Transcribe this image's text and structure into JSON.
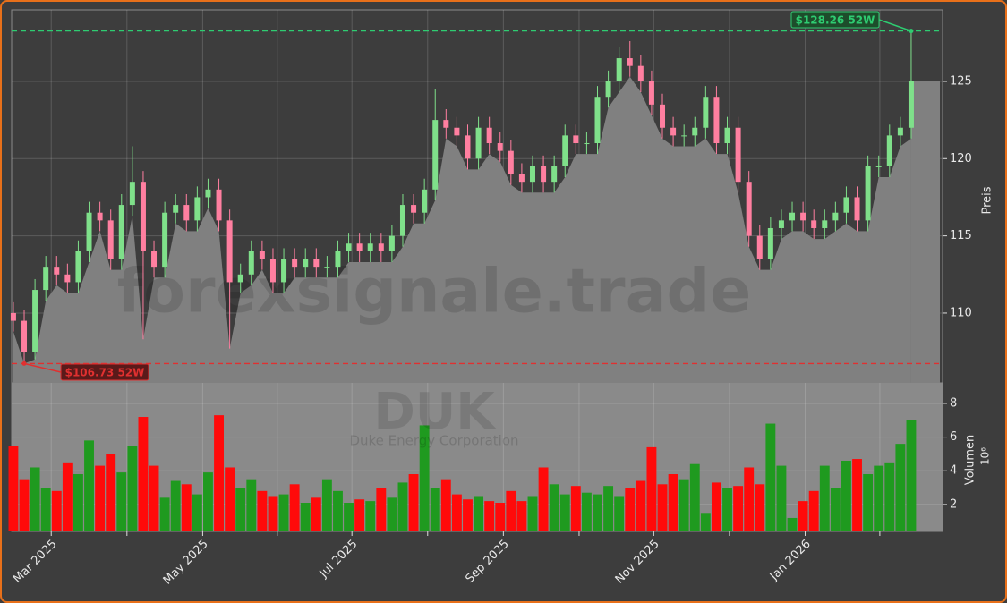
{
  "chart_data": {
    "type": "candlestick",
    "open": [
      110,
      109.5,
      107.5,
      111.5,
      113,
      112.5,
      112,
      114,
      116.5,
      116,
      113.5,
      117,
      118.5,
      114,
      113,
      116.5,
      117,
      116,
      117.5,
      118,
      116,
      112,
      112.5,
      114,
      113.5,
      112,
      113.5,
      113,
      113.5,
      113,
      113,
      114,
      114.5,
      114,
      114.5,
      114,
      115,
      117,
      116.5,
      118,
      122.5,
      122,
      121.5,
      120,
      122,
      121,
      120.5,
      119,
      118.5,
      119.5,
      118.5,
      119.5,
      121.5,
      121,
      121,
      124,
      125,
      126.5,
      126,
      125,
      123.5,
      122,
      121.5,
      121.5,
      122,
      124,
      121,
      122,
      118.5,
      115,
      113.5,
      115.5,
      116,
      116.5,
      116,
      115.5,
      116,
      116.5,
      117.5,
      116,
      119.5,
      119.5,
      121.5,
      122
    ],
    "high": [
      110.7,
      110.2,
      112.2,
      113.7,
      113.7,
      113.2,
      114.7,
      117.2,
      117.2,
      116.7,
      117.7,
      120.8,
      119.2,
      114.7,
      117.2,
      117.7,
      117.7,
      118.2,
      118.7,
      118.7,
      116.7,
      113.2,
      114.7,
      114.7,
      114.2,
      114.2,
      114.2,
      114.2,
      114.2,
      113.7,
      114.7,
      115.2,
      115.2,
      115.2,
      115.2,
      115.7,
      117.7,
      117.7,
      118.7,
      124.5,
      123.2,
      122.7,
      122.2,
      122.7,
      122.7,
      121.7,
      121.2,
      119.7,
      120.2,
      120.2,
      120.2,
      122.2,
      122.2,
      121.7,
      124.7,
      125.7,
      127.2,
      127.6,
      126.7,
      125.7,
      124.2,
      122.7,
      122.2,
      122.7,
      124.7,
      124.7,
      122.7,
      122.7,
      119.2,
      115.7,
      116.2,
      116.7,
      117.2,
      117.2,
      116.7,
      116.7,
      117.2,
      118.2,
      118.2,
      120.2,
      120.2,
      122.2,
      122.7,
      128.26
    ],
    "low": [
      108.8,
      106.73,
      107.0,
      110.8,
      111.8,
      111.3,
      111.3,
      113.3,
      115.3,
      112.8,
      112.8,
      116.3,
      108.3,
      112.3,
      112.3,
      115.8,
      115.3,
      115.3,
      116.8,
      115.3,
      107.7,
      111.3,
      111.8,
      112.8,
      111.3,
      111.3,
      112.3,
      112.3,
      112.3,
      112.3,
      112.3,
      113.3,
      113.3,
      113.3,
      113.3,
      113.3,
      114.3,
      115.8,
      115.8,
      117.3,
      121.3,
      120.8,
      119.3,
      119.3,
      120.3,
      119.8,
      118.3,
      117.8,
      117.8,
      117.8,
      117.8,
      118.8,
      120.3,
      120.3,
      120.3,
      123.3,
      124.3,
      125.3,
      124.3,
      122.8,
      121.3,
      120.8,
      120.8,
      120.8,
      121.3,
      120.3,
      120.3,
      117.8,
      114.3,
      112.8,
      112.8,
      114.8,
      115.3,
      115.3,
      114.8,
      114.8,
      115.3,
      115.8,
      115.3,
      115.3,
      118.8,
      118.8,
      120.8,
      121.3
    ],
    "close": [
      109.5,
      107.5,
      111.5,
      113,
      112.5,
      112,
      114,
      116.5,
      116,
      113.5,
      117,
      118.5,
      114,
      113,
      116.5,
      117,
      116,
      117.5,
      118,
      116,
      112,
      112.5,
      114,
      113.5,
      112,
      113.5,
      113,
      113.5,
      113,
      113,
      114,
      114.5,
      114,
      114.5,
      114,
      115,
      117,
      116.5,
      118,
      122.5,
      122,
      121.5,
      120,
      122,
      121,
      120.5,
      119,
      118.5,
      119.5,
      118.5,
      119.5,
      121.5,
      121,
      121,
      124,
      125,
      126.5,
      126,
      125,
      123.5,
      122,
      121.5,
      121.5,
      122,
      124,
      121,
      122,
      118.5,
      115,
      113.5,
      115.5,
      116,
      116.5,
      116,
      115.5,
      116,
      116.5,
      117.5,
      116,
      119.5,
      119.5,
      121.5,
      122,
      125
    ],
    "volume": [
      5.5,
      3.5,
      4.2,
      3,
      2.8,
      4.5,
      3.8,
      5.8,
      4.3,
      5,
      3.9,
      5.5,
      7.2,
      4.3,
      2.4,
      3.4,
      3.2,
      2.6,
      3.9,
      7.3,
      4.2,
      3,
      3.5,
      2.8,
      2.5,
      2.6,
      3.2,
      2.1,
      2.4,
      3.5,
      2.8,
      2.1,
      2.3,
      2.2,
      3,
      2.4,
      3.3,
      3.8,
      6.7,
      3,
      3.5,
      2.6,
      2.3,
      2.5,
      2.2,
      2.1,
      2.8,
      2.2,
      2.5,
      4.2,
      3.2,
      2.6,
      3.1,
      2.7,
      2.6,
      3.1,
      2.5,
      3,
      3.4,
      5.4,
      3.2,
      3.8,
      3.5,
      4.4,
      1.5,
      3.3,
      3,
      3.1,
      4.2,
      3.2,
      6.8,
      4.3,
      1.2,
      2.2,
      2.8,
      4.3,
      3,
      4.6,
      4.7,
      3.8,
      4.3,
      4.5,
      5.6,
      7
    ],
    "up_color": "#7fe08a",
    "down_color": "#ff7fa0",
    "volume_up_color": "#1f9a1f",
    "volume_down_color": "#ff0a0a",
    "area_color": "#808080",
    "ylim": [
      105.48,
      129.63
    ],
    "yticks": [
      110,
      115,
      120,
      125
    ],
    "volume_ylim": [
      0.4,
      9.22
    ],
    "volume_yticks": [
      2,
      4,
      6,
      8
    ],
    "xlim": [
      -0.16,
      85.9
    ],
    "xticks": [
      {
        "value": 3.5,
        "label": "Mar 2025"
      },
      {
        "value": 17.5,
        "label": "May 2025"
      },
      {
        "value": 31.3,
        "label": "Jul 2025"
      },
      {
        "value": 45.3,
        "label": "Sep 2025"
      },
      {
        "value": 59.2,
        "label": "Nov 2025"
      },
      {
        "value": 73.2,
        "label": "Jan 2026"
      }
    ],
    "xticks_minor": [
      10.5,
      24.4,
      38.3,
      52.3,
      66.2,
      80.1
    ],
    "grid": true,
    "ylabel": "Preis",
    "volume_label": "Volumen",
    "volume_unit": "10⁶",
    "annotations": [
      {
        "label": "$128.26 52W",
        "value": 128.26,
        "x": 83,
        "color": "#2ecc71"
      },
      {
        "label": "$106.73 52W",
        "value": 106.73,
        "x": 1,
        "color": "#e03030"
      }
    ],
    "watermark": "forexsignale.trade",
    "symbol": "DUK",
    "company": "Duke Energy Corporation"
  }
}
